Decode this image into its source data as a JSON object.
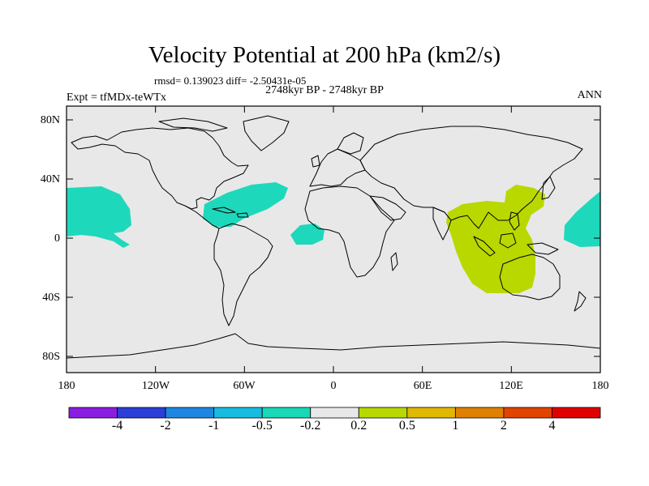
{
  "title": "Velocity Potential at 200 hPa (km2/s)",
  "stats": "rmsd= 0.139023 diff= -2.50431e-05",
  "experiment": "Expt = tfMDx-teWTx",
  "period": "2748kyr BP - 2748kyr BP",
  "season": "ANN",
  "lat_labels": [
    "80N",
    "40N",
    "0",
    "40S",
    "80S"
  ],
  "lon_labels": [
    "180",
    "120W",
    "60W",
    "0",
    "60E",
    "120E",
    "180"
  ],
  "colorbar": {
    "labels": [
      "-4",
      "-2",
      "-1",
      "-0.5",
      "-0.2",
      "0.2",
      "0.5",
      "1",
      "2",
      "4"
    ],
    "colors": [
      "#8a1ee0",
      "#2a3ed8",
      "#1e86e0",
      "#18bce0",
      "#18d8b8",
      "#e8e8e8",
      "#b8d800",
      "#e0b800",
      "#e08000",
      "#e04400",
      "#e00000"
    ]
  },
  "colors": {
    "map_background": "#e8e8e8",
    "negative_fill": "#1ed8bc",
    "positive_fill": "#b8d800",
    "coastline": "#000000"
  }
}
